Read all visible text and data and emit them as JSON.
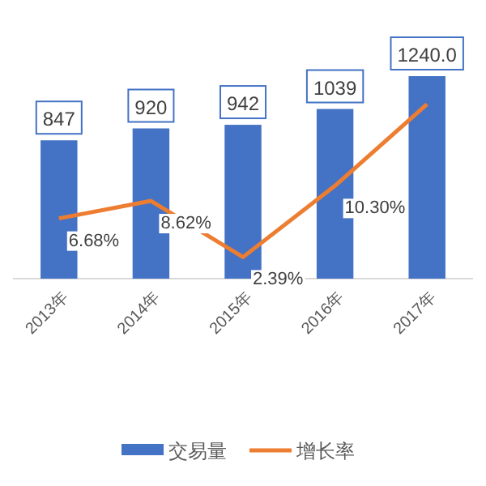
{
  "chart_data": {
    "type": "bar",
    "categories": [
      "2013年",
      "2014年",
      "2015年",
      "2016年",
      "2017年"
    ],
    "series": [
      {
        "name": "交易量",
        "color": "#4472c4",
        "values": [
          847,
          920,
          942,
          1039,
          1240.0
        ],
        "value_labels": [
          "847",
          "920",
          "942",
          "1039",
          "1240.0"
        ]
      },
      {
        "name": "增长率",
        "type": "line",
        "axis": "y2",
        "color": "#ed7d31",
        "values": [
          6.68,
          8.62,
          2.39,
          10.3,
          19.35
        ],
        "value_labels": [
          "6.68%",
          "8.62%",
          "2.39%",
          "10.30%",
          null
        ]
      }
    ],
    "legend": "bottom",
    "marker": "none"
  }
}
